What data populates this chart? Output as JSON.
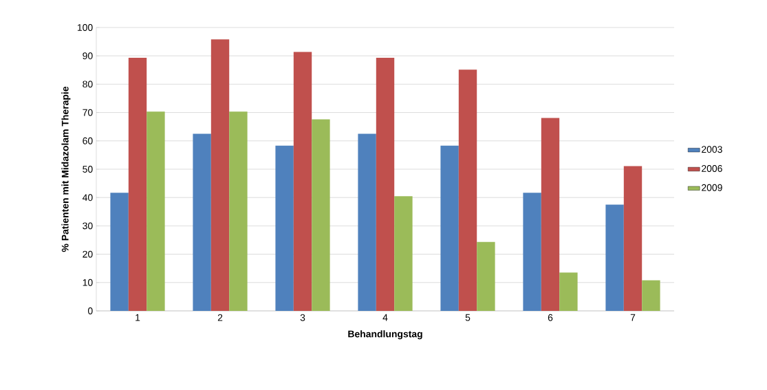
{
  "chart_data": {
    "type": "bar",
    "xlabel": "Behandlungstag",
    "ylabel": "% Patienten mit Midazolam Therapie",
    "categories": [
      "1",
      "2",
      "3",
      "4",
      "5",
      "6",
      "7"
    ],
    "series": [
      {
        "name": "2003",
        "color": "#4f81bd",
        "values": [
          41.7,
          62.5,
          58.3,
          62.5,
          58.3,
          41.7,
          37.5
        ]
      },
      {
        "name": "2006",
        "color": "#c0504d",
        "values": [
          89.3,
          95.8,
          91.4,
          89.3,
          85.1,
          68.1,
          51.1
        ]
      },
      {
        "name": "2009",
        "color": "#9bbb59",
        "values": [
          70.3,
          70.3,
          67.6,
          40.5,
          24.3,
          13.5,
          10.8
        ]
      }
    ],
    "ylim": [
      0,
      100
    ],
    "yticks": [
      0,
      10,
      20,
      30,
      40,
      50,
      60,
      70,
      80,
      90,
      100
    ],
    "grid": "y",
    "legend": "right"
  }
}
